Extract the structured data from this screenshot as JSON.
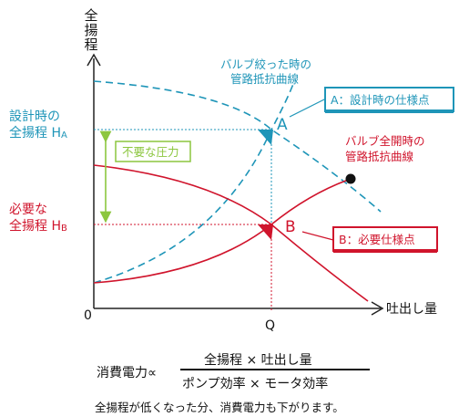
{
  "axes": {
    "y_label": "全揚程",
    "x_label": "吐出し量",
    "origin": "0",
    "q_tick": "Q"
  },
  "labels": {
    "design_head_1": "設計時の",
    "design_head_2": "全揚程 H",
    "design_head_sub": "A",
    "required_head_1": "必要な",
    "required_head_2": "全揚程 H",
    "required_head_sub": "B",
    "valve_throttled_1": "バルブ絞った時の",
    "valve_throttled_2": "管路抵抗曲線",
    "valve_open_1": "バルブ全開時の",
    "valve_open_2": "管路抵抗曲線",
    "point_a": "A",
    "point_b": "B",
    "callout_a": "A：設計時の仕様点",
    "callout_b": "B：必要仕様点",
    "unnecessary_pressure": "不要な圧力"
  },
  "formula": {
    "lhs": "消費電力∝",
    "numerator": "全揚程 × 吐出し量",
    "denominator": "ポンプ効率 × モータ効率",
    "note": "全揚程が低くなった分、消費電力も下がります。"
  },
  "colors": {
    "teal": "#1e95b8",
    "red": "#d0142c",
    "green": "#8cc63f",
    "axis": "#222222"
  }
}
